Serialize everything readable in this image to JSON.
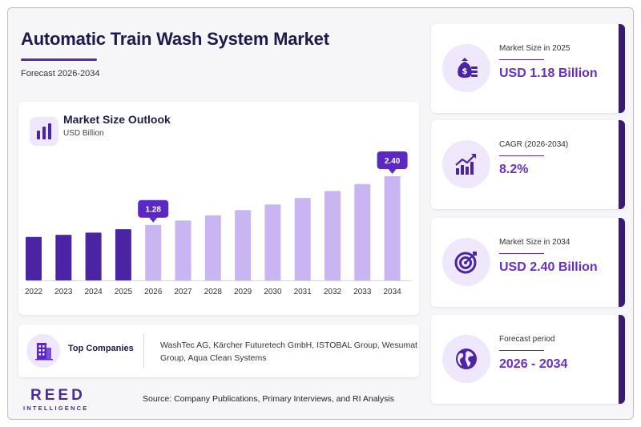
{
  "header": {
    "title": "Automatic Train Wash System Market",
    "subtitle": "Forecast 2026-2034"
  },
  "chart_card": {
    "title": "Market Size Outlook",
    "unit": "USD Billion"
  },
  "chart_data": {
    "type": "bar",
    "title": "Market Size Outlook",
    "ylabel": "USD Billion",
    "categories": [
      "2022",
      "2023",
      "2024",
      "2025",
      "2026",
      "2027",
      "2028",
      "2029",
      "2030",
      "2031",
      "2032",
      "2033",
      "2034"
    ],
    "values": [
      1.0,
      1.05,
      1.1,
      1.18,
      1.28,
      1.38,
      1.5,
      1.62,
      1.75,
      1.9,
      2.06,
      2.22,
      2.4
    ],
    "ylim": [
      0,
      2.4
    ],
    "callouts": [
      {
        "category": "2026",
        "label": "1.28"
      },
      {
        "category": "2034",
        "label": "2.40"
      }
    ],
    "colors": {
      "historical": "#4b24a3",
      "forecast": "#c9b5f2",
      "callout": "#5b28c4"
    },
    "historical_through": "2025",
    "grid": false
  },
  "companies": {
    "label": "Top Companies",
    "list": "WashTec AG, Kärcher Futuretech GmbH, ISTOBAL Group, Wesumat Group, Aqua Clean Systems"
  },
  "stats": [
    {
      "label": "Market Size in 2025",
      "value": "USD 1.18 Billion",
      "icon": "money-bag-icon"
    },
    {
      "label": "CAGR (2026-2034)",
      "value": "8.2%",
      "icon": "growth-chart-icon"
    },
    {
      "label": "Market Size in 2034",
      "value": "USD 2.40 Billion",
      "icon": "target-icon"
    },
    {
      "label": "Forecast period",
      "value": "2026 - 2034",
      "icon": "globe-icon"
    }
  ],
  "brand": {
    "name": "REED",
    "tagline": "INTELLIGENCE"
  },
  "source": "Source: Company Publications, Primary Interviews, and RI Analysis",
  "theme": {
    "accent": "#6a2fc4",
    "dark": "#1d1a4f",
    "stat_edge": "#3a1a6e"
  }
}
